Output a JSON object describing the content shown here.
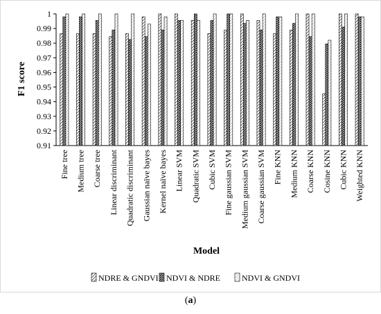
{
  "figure": {
    "caption_prefix": "(",
    "caption_letter": "a",
    "caption_suffix": ")"
  },
  "chart_data": {
    "type": "bar",
    "title": "",
    "xlabel": "Model",
    "ylabel": "F1 score",
    "ylim": [
      0.91,
      1.0
    ],
    "yticks": [
      0.91,
      0.92,
      0.93,
      0.94,
      0.95,
      0.96,
      0.97,
      0.98,
      0.99,
      1
    ],
    "ytick_labels": [
      "0.91",
      "0.92",
      "0.93",
      "0.94",
      "0.95",
      "0.96",
      "0.97",
      "0.98",
      "0.99",
      "1"
    ],
    "grid": false,
    "legend_position": "bottom",
    "categories": [
      "Fine tree",
      "Medium tree",
      "Coarse tree",
      "Linear discriminant",
      "Quadratic discriminant",
      "Gaussian naïve bayes",
      "Kernel naïve bayes",
      "Linear SVM",
      "Quadratic SVM",
      "Cubic SVM",
      "Fine gaussian SVM",
      "Medium gaussian SVM",
      "Coarse gaussian SVM",
      "Fine KNN",
      "Medium KNN",
      "Coarse KNN",
      "Cosine KNN",
      "Cubic KNN",
      "Weighted KNN"
    ],
    "series": [
      {
        "name": "NDRE & GNDVI",
        "pattern": "diag-dense",
        "values": [
          0.9865,
          0.9865,
          0.9865,
          0.9845,
          0.9865,
          0.998,
          1.0,
          1.0,
          0.9955,
          0.9865,
          0.989,
          1.0,
          0.9955,
          0.9865,
          0.989,
          1.0,
          0.9455,
          1.0,
          1.0
        ]
      },
      {
        "name": "NDVI & NDRE",
        "pattern": "cross",
        "values": [
          0.998,
          0.998,
          0.9955,
          0.989,
          0.9825,
          0.9845,
          0.989,
          0.9955,
          1.0,
          0.9955,
          1.0,
          0.9935,
          0.989,
          0.998,
          0.9935,
          0.9845,
          0.9795,
          0.991,
          0.998
        ]
      },
      {
        "name": "NDVI & GNDVI",
        "pattern": "diag-light",
        "values": [
          1.0,
          1.0,
          1.0,
          1.0,
          1.0,
          0.993,
          0.998,
          0.9955,
          0.9955,
          1.0,
          1.0,
          0.9955,
          1.0,
          0.998,
          1.0,
          1.0,
          0.982,
          1.0,
          0.998
        ]
      }
    ]
  }
}
